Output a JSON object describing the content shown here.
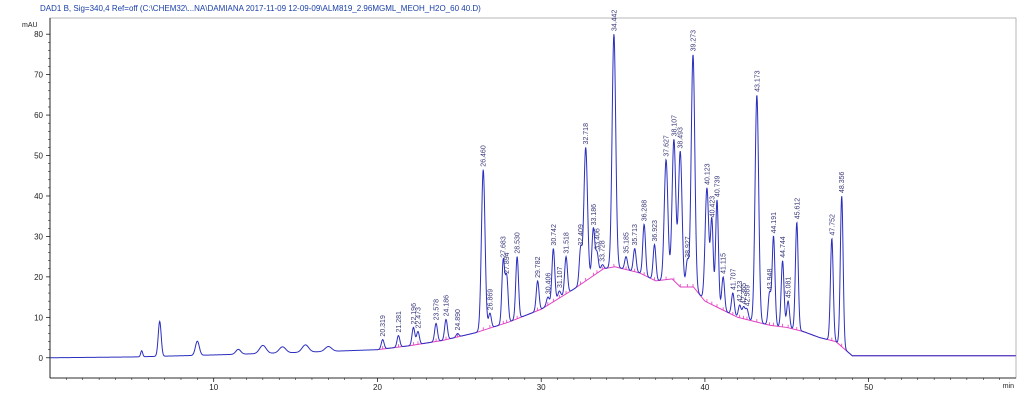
{
  "header": {
    "title": "DAD1 B, Sig=340,4 Ref=off (C:\\CHEM32\\...NA\\DAMIANA 2017-11-09 12-09-09\\ALM819_2.96MGML_MEOH_H2O_60 40.D)"
  },
  "colors": {
    "trace": "#2b2fbf",
    "baseline": "#e040c0",
    "axis": "#000000",
    "label": "#3a3a7a",
    "header": "#1a3fa8"
  },
  "chart_data": {
    "type": "line",
    "title": "DAD1 B, Sig=340,4 Ref=off (C:\\CHEM32\\...NA\\DAMIANA 2017-11-09 12-09-09\\ALM819_2.96MGML_MEOH_H2O_60 40.D)",
    "xlabel": "min",
    "ylabel": "mAU",
    "xlim": [
      0,
      59
    ],
    "ylim": [
      -5,
      84
    ],
    "x_ticks": [
      10,
      20,
      30,
      40,
      50
    ],
    "x_tick_labels": [
      "10",
      "20",
      "30",
      "40",
      "50"
    ],
    "y_ticks": [
      0,
      10,
      20,
      30,
      40,
      50,
      60,
      70,
      80
    ],
    "y_tick_labels": [
      "0",
      "10",
      "20",
      "30",
      "40",
      "50",
      "60",
      "70",
      "80"
    ],
    "x_axis_unit_label": "min",
    "y_axis_unit_label": "mAU",
    "series": [],
    "baseline": {
      "x": [
        0,
        5,
        10,
        15,
        20,
        22,
        24,
        26,
        28,
        30,
        32,
        33.8,
        34.5,
        36,
        37,
        38,
        38.5,
        39.3,
        40,
        41,
        42,
        43,
        44,
        45,
        46,
        47,
        48,
        49,
        52,
        59
      ],
      "y": [
        0,
        0.2,
        0.7,
        1.3,
        2.0,
        3.0,
        4.3,
        6.2,
        8.8,
        12.0,
        17.0,
        22.0,
        22.5,
        21.0,
        19.0,
        19.5,
        17.5,
        17.5,
        14.0,
        12.0,
        10.0,
        9.0,
        8.0,
        7.5,
        6.5,
        5.0,
        4.0,
        0.5,
        0.5,
        0.5
      ]
    },
    "peaks": [
      {
        "rt": 6.7,
        "height": 9.0,
        "label": ""
      },
      {
        "rt": 20.319,
        "height": 4.5,
        "label": "20.319"
      },
      {
        "rt": 21.281,
        "height": 5.5,
        "label": "21.281"
      },
      {
        "rt": 22.196,
        "height": 7.5,
        "label": "22.196"
      },
      {
        "rt": 22.473,
        "height": 6.5,
        "label": "22.473"
      },
      {
        "rt": 23.578,
        "height": 8.5,
        "label": "23.578"
      },
      {
        "rt": 24.186,
        "height": 9.5,
        "label": "24.186"
      },
      {
        "rt": 24.89,
        "height": 6.0,
        "label": "24.890"
      },
      {
        "rt": 26.46,
        "height": 46.5,
        "label": "26.460"
      },
      {
        "rt": 26.869,
        "height": 11.0,
        "label": "26.869"
      },
      {
        "rt": 27.683,
        "height": 24.0,
        "label": "27.683"
      },
      {
        "rt": 27.894,
        "height": 20.0,
        "label": "27.894"
      },
      {
        "rt": 28.53,
        "height": 25.0,
        "label": "28.530"
      },
      {
        "rt": 29.782,
        "height": 19.0,
        "label": "29.782"
      },
      {
        "rt": 30.406,
        "height": 15.0,
        "label": "30.406"
      },
      {
        "rt": 30.742,
        "height": 27.0,
        "label": "30.742"
      },
      {
        "rt": 31.107,
        "height": 16.5,
        "label": "31.107"
      },
      {
        "rt": 31.518,
        "height": 25.0,
        "label": "31.518"
      },
      {
        "rt": 32.409,
        "height": 27.0,
        "label": "32.409"
      },
      {
        "rt": 32.718,
        "height": 52.0,
        "label": "32.718"
      },
      {
        "rt": 33.186,
        "height": 32.0,
        "label": "33.186"
      },
      {
        "rt": 33.406,
        "height": 26.0,
        "label": "33.406"
      },
      {
        "rt": 33.728,
        "height": 23.0,
        "label": "33.728"
      },
      {
        "rt": 34.442,
        "height": 80.0,
        "label": "34.442"
      },
      {
        "rt": 35.185,
        "height": 25.0,
        "label": "35.185"
      },
      {
        "rt": 35.713,
        "height": 27.0,
        "label": "35.713"
      },
      {
        "rt": 36.288,
        "height": 33.0,
        "label": "36.288"
      },
      {
        "rt": 36.923,
        "height": 28.0,
        "label": "36.923"
      },
      {
        "rt": 37.627,
        "height": 49.0,
        "label": "37.627"
      },
      {
        "rt": 38.107,
        "height": 54.0,
        "label": "38.107"
      },
      {
        "rt": 38.493,
        "height": 51.0,
        "label": "38.493"
      },
      {
        "rt": 38.927,
        "height": 24.0,
        "label": "38.927"
      },
      {
        "rt": 39.273,
        "height": 75.0,
        "label": "39.273"
      },
      {
        "rt": 40.123,
        "height": 42.0,
        "label": "40.123"
      },
      {
        "rt": 40.423,
        "height": 34.0,
        "label": "40.423"
      },
      {
        "rt": 40.739,
        "height": 39.0,
        "label": "40.739"
      },
      {
        "rt": 41.115,
        "height": 20.0,
        "label": "41.115"
      },
      {
        "rt": 41.707,
        "height": 16.0,
        "label": "41.707"
      },
      {
        "rt": 42.123,
        "height": 13.0,
        "label": "42.123"
      },
      {
        "rt": 42.365,
        "height": 12.5,
        "label": "42.365"
      },
      {
        "rt": 42.569,
        "height": 12.0,
        "label": "42.569"
      },
      {
        "rt": 43.173,
        "height": 65.0,
        "label": "43.173"
      },
      {
        "rt": 43.948,
        "height": 16.0,
        "label": "43.948"
      },
      {
        "rt": 44.191,
        "height": 30.0,
        "label": "44.191"
      },
      {
        "rt": 44.744,
        "height": 24.0,
        "label": "44.744"
      },
      {
        "rt": 45.081,
        "height": 14.0,
        "label": "45.081"
      },
      {
        "rt": 45.612,
        "height": 33.5,
        "label": "45.612"
      },
      {
        "rt": 47.752,
        "height": 29.5,
        "label": "47.752"
      },
      {
        "rt": 48.356,
        "height": 40.0,
        "label": "48.356"
      }
    ]
  }
}
